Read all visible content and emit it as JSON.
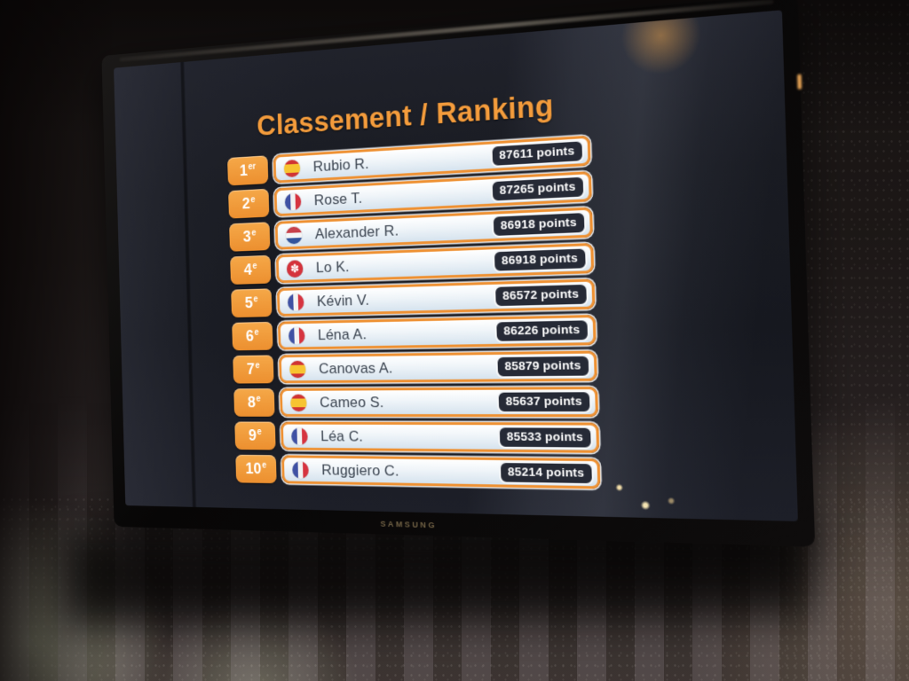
{
  "device": {
    "brand": "SAMSUNG"
  },
  "screen": {
    "title": "Classement / Ranking",
    "rows": [
      {
        "rank": "1",
        "ordinal": "er",
        "flag": "spain",
        "name": "Rubio R.",
        "points": "87611 points"
      },
      {
        "rank": "2",
        "ordinal": "e",
        "flag": "france",
        "name": "Rose T.",
        "points": "87265 points"
      },
      {
        "rank": "3",
        "ordinal": "e",
        "flag": "netherlands",
        "name": "Alexander R.",
        "points": "86918 points"
      },
      {
        "rank": "4",
        "ordinal": "e",
        "flag": "hong-kong",
        "name": "Lo K.",
        "points": "86918 points"
      },
      {
        "rank": "5",
        "ordinal": "e",
        "flag": "france",
        "name": "Kévin V.",
        "points": "86572 points"
      },
      {
        "rank": "6",
        "ordinal": "e",
        "flag": "france",
        "name": "Léna A.",
        "points": "86226 points"
      },
      {
        "rank": "7",
        "ordinal": "e",
        "flag": "spain",
        "name": "Canovas A.",
        "points": "85879 points"
      },
      {
        "rank": "8",
        "ordinal": "e",
        "flag": "spain",
        "name": "Cameo S.",
        "points": "85637 points"
      },
      {
        "rank": "9",
        "ordinal": "e",
        "flag": "france",
        "name": "Léa C.",
        "points": "85533 points"
      },
      {
        "rank": "10",
        "ordinal": "e",
        "flag": "france",
        "name": "Ruggiero C.",
        "points": "85214 points"
      }
    ],
    "colors": {
      "accent_orange": "#f49c3c",
      "bar_border_orange": "#ee9133",
      "points_badge_bg": "#262a36",
      "bar_fill_top": "#ffffff",
      "bar_fill_bottom": "#d6e3ee"
    }
  }
}
